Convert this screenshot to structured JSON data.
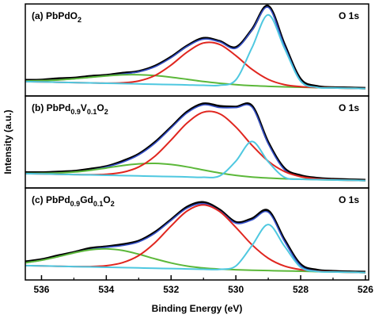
{
  "chart_data": [
    {
      "type": "line",
      "title_parts": [
        "(a) PbPdO",
        "2"
      ],
      "annotation": "O 1s",
      "x": [
        536.5,
        536,
        535.5,
        535,
        534.5,
        534,
        533.5,
        533,
        532.5,
        532,
        531.5,
        531,
        530.5,
        530,
        529.5,
        529,
        528.5,
        528,
        527.5,
        527,
        526.5,
        526
      ],
      "xlim": [
        536.5,
        525.9
      ],
      "ylim": [
        0,
        100
      ],
      "series": [
        {
          "color": "#000000",
          "values": [
            17.2,
            17.5,
            18.9,
            19.6,
            21.5,
            22.6,
            24.9,
            26.8,
            32.5,
            42.4,
            54.6,
            62.8,
            59.5,
            52.9,
            72.4,
            97.8,
            56.2,
            18.3,
            10.6,
            9.3,
            8.9,
            8.5
          ]
        },
        {
          "color": "#3550c8",
          "values": [
            16.3,
            16.7,
            17.4,
            18.6,
            20.3,
            21.9,
            23.8,
            26.3,
            31.7,
            41.6,
            53.9,
            61.7,
            58.8,
            51.8,
            71.7,
            96.3,
            54.5,
            16.7,
            9.5,
            8.7,
            8.4,
            8
          ]
        },
        {
          "color": "#5cb83a",
          "values": [
            16.3,
            16.7,
            17.4,
            18.6,
            20.3,
            21.8,
            23,
            23.1,
            22.2,
            20.4,
            18.1,
            15.7,
            13.8,
            12.3,
            11.2,
            10.5,
            9.9,
            9.5,
            9.1,
            8.7,
            8.4,
            8
          ]
        },
        {
          "color": "#e0261f",
          "values": [
            15.6,
            15.3,
            14.9,
            14.5,
            14.2,
            13.9,
            14.3,
            16.3,
            22.2,
            33.6,
            47.8,
            57.6,
            56,
            43.8,
            28.9,
            18,
            12.3,
            10.1,
            9.2,
            8.7,
            8.4,
            8
          ]
        },
        {
          "color": "#4fc8e0",
          "values": [
            15.6,
            15.3,
            14.9,
            14.5,
            14.2,
            13.8,
            13.5,
            13.1,
            12.7,
            12.4,
            12,
            11.6,
            11.6,
            17.5,
            52.6,
            88.2,
            51.9,
            16.1,
            9.4,
            8.7,
            8.4,
            8
          ]
        }
      ]
    },
    {
      "type": "line",
      "title_parts": [
        "(b) PbPd",
        "0.9",
        "V",
        "0.1",
        "O",
        "2"
      ],
      "annotation": "O 1s",
      "ylabel": "Intensity (a.u.)",
      "x": [
        536.5,
        536,
        535.5,
        535,
        534.5,
        534,
        533.5,
        533,
        532.5,
        532,
        531.5,
        531,
        530.5,
        530,
        529.5,
        529,
        528.5,
        528,
        527.5,
        527,
        526.5,
        526
      ],
      "xlim": [
        536.5,
        525.9
      ],
      "ylim": [
        0,
        100
      ],
      "series": [
        {
          "color": "#000000",
          "values": [
            16.9,
            16.8,
            17.5,
            18.3,
            20.6,
            23.4,
            29.1,
            36.8,
            49.6,
            66.1,
            82.9,
            91.6,
            88.9,
            88.2,
            89.1,
            49.5,
            21.3,
            13.6,
            10.8,
            9.7,
            9.1,
            8.6
          ]
        },
        {
          "color": "#3550c8",
          "values": [
            15.8,
            15.9,
            16.3,
            17.4,
            19.4,
            22.8,
            27.9,
            35.9,
            48.5,
            65.2,
            81.7,
            90.3,
            87.4,
            87.3,
            87.7,
            48,
            19.9,
            12.4,
            9.9,
            8.9,
            8.4,
            8
          ]
        },
        {
          "color": "#5cb83a",
          "values": [
            15.8,
            15.9,
            16.3,
            17.3,
            19.2,
            21.7,
            24.4,
            26.2,
            26.7,
            25.5,
            22.9,
            19.5,
            16.3,
            13.7,
            11.9,
            10.8,
            10,
            9.6,
            9.1,
            8.7,
            8.4,
            8
          ]
        },
        {
          "color": "#e0261f",
          "values": [
            15.6,
            15.3,
            14.9,
            14.6,
            14.4,
            14.9,
            17,
            22.8,
            34.5,
            52.1,
            70.8,
            82.4,
            80.6,
            66.2,
            46.3,
            29.1,
            17.9,
            12.3,
            9.9,
            8.9,
            8.4,
            8
          ]
        },
        {
          "color": "#4fc8e0",
          "values": [
            15.6,
            15.3,
            14.9,
            14.5,
            14.2,
            13.8,
            13.5,
            13.1,
            12.7,
            12.4,
            12,
            11.6,
            13.1,
            29.2,
            50.5,
            28.5,
            11.6,
            9.5,
            9.1,
            8.7,
            8.4,
            8
          ]
        }
      ]
    },
    {
      "type": "line",
      "title_parts": [
        "(c) PbPd",
        "0.9",
        "Gd",
        "0.1",
        "O",
        "2"
      ],
      "annotation": "O 1s",
      "xlabel": "Binding Energy (eV)",
      "x": [
        536.5,
        536,
        535.5,
        535,
        534.5,
        534,
        533.5,
        533,
        532.5,
        532,
        531.5,
        531,
        530.5,
        530,
        529.5,
        529,
        528.5,
        528,
        527.5,
        527,
        526.5,
        526
      ],
      "xlim": [
        536.5,
        525.9
      ],
      "ylim": [
        0,
        100
      ],
      "xticks": [
        536,
        534,
        532,
        530,
        528,
        526
      ],
      "xticks_minor": [
        535,
        533,
        531,
        529,
        527
      ],
      "series": [
        {
          "color": "#000000",
          "values": [
            19.9,
            22.3,
            26.4,
            30.1,
            34.5,
            36.2,
            38.6,
            42.3,
            51.9,
            65.6,
            79.5,
            84.4,
            76.3,
            62.8,
            66.7,
            75.2,
            43.8,
            16.9,
            10.9,
            9.6,
            9,
            8.7
          ]
        },
        {
          "color": "#3550c8",
          "values": [
            18.7,
            21.4,
            25.2,
            29.5,
            33.2,
            35.5,
            37.4,
            41.4,
            50.7,
            64.8,
            78.2,
            83,
            75.1,
            61.7,
            65.3,
            73.6,
            42.1,
            15.5,
            9.7,
            8.8,
            8.4,
            8
          ]
        },
        {
          "color": "#5cb83a",
          "values": [
            18.7,
            21.4,
            25.2,
            29.4,
            32.8,
            33.8,
            32.1,
            28,
            23,
            18.5,
            15.1,
            13,
            11.8,
            11.1,
            10.6,
            10.2,
            9.8,
            9.5,
            9.1,
            8.7,
            8.4,
            8
          ]
        },
        {
          "color": "#e0261f",
          "values": [
            15.6,
            15.3,
            14.9,
            14.6,
            14.6,
            15.5,
            18.8,
            26.5,
            40.4,
            58.7,
            75.1,
            81.6,
            74.4,
            57.2,
            38.2,
            23.6,
            15.1,
            11.2,
            9.5,
            8.8,
            8.4,
            8
          ]
        },
        {
          "color": "#4fc8e0",
          "values": [
            15.6,
            15.3,
            14.9,
            14.5,
            14.2,
            13.8,
            13.5,
            13.1,
            12.7,
            12.4,
            12,
            11.6,
            11.5,
            15.2,
            37.5,
            60.2,
            36.8,
            13.8,
            9.3,
            8.7,
            8.4,
            8
          ]
        }
      ]
    }
  ]
}
